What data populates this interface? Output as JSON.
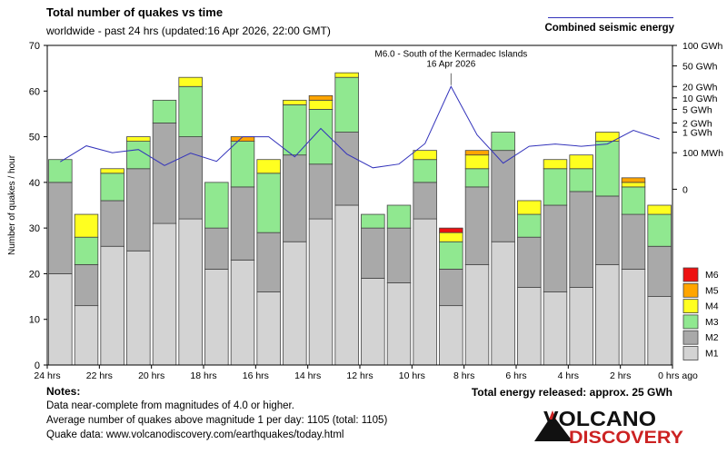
{
  "header": {
    "title": "Total number of quakes vs time",
    "subtitle": "worldwide - past 24 hrs (updated:16 Apr 2026, 22:00 GMT)",
    "energy_legend": "Combined seismic energy"
  },
  "chart_data": {
    "type": "bar",
    "stacked": true,
    "ylabel": "Number of quakes / hour",
    "ylim": [
      0,
      70
    ],
    "yticks": [
      0,
      10,
      20,
      30,
      40,
      50,
      60,
      70
    ],
    "xtick_labels": [
      "24 hrs",
      "22 hrs",
      "20 hrs",
      "18 hrs",
      "16 hrs",
      "14 hrs",
      "12 hrs",
      "10 hrs",
      "8 hrs",
      "6 hrs",
      "4 hrs",
      "2 hrs",
      "0 hrs ago"
    ],
    "magnitude_classes": [
      "M1",
      "M2",
      "M3",
      "M4",
      "M5",
      "M6"
    ],
    "class_colors": [
      "#d3d3d3",
      "#a9a9a9",
      "#90e890",
      "#ffff20",
      "#ffa500",
      "#ee1111"
    ],
    "hours_ago_start": [
      24,
      23,
      22,
      21,
      20,
      19,
      18,
      17,
      16,
      15,
      14,
      13,
      12,
      11,
      10,
      9,
      8,
      7,
      6,
      5,
      4,
      3,
      2,
      1
    ],
    "series": [
      {
        "name": "M1",
        "values": [
          20,
          13,
          26,
          25,
          31,
          32,
          21,
          23,
          16,
          27,
          32,
          35,
          19,
          18,
          32,
          13,
          22,
          27,
          17,
          16,
          17,
          22,
          21,
          15
        ]
      },
      {
        "name": "M2",
        "values": [
          20,
          9,
          10,
          18,
          22,
          18,
          9,
          16,
          13,
          19,
          12,
          16,
          11,
          12,
          8,
          8,
          17,
          20,
          11,
          19,
          21,
          15,
          12,
          11
        ]
      },
      {
        "name": "M3",
        "values": [
          5,
          6,
          6,
          6,
          5,
          11,
          10,
          10,
          13,
          11,
          12,
          12,
          3,
          5,
          5,
          6,
          4,
          4,
          5,
          8,
          5,
          12,
          6,
          7
        ]
      },
      {
        "name": "M4",
        "values": [
          0,
          5,
          1,
          1,
          0,
          2,
          0,
          0,
          3,
          1,
          2,
          1,
          0,
          0,
          2,
          2,
          3,
          0,
          3,
          2,
          3,
          2,
          1,
          2
        ]
      },
      {
        "name": "M5",
        "values": [
          0,
          0,
          0,
          0,
          0,
          0,
          0,
          1,
          0,
          0,
          1,
          0,
          0,
          0,
          0,
          0,
          1,
          0,
          0,
          0,
          0,
          0,
          1,
          0
        ]
      },
      {
        "name": "M6",
        "values": [
          0,
          0,
          0,
          0,
          0,
          0,
          0,
          0,
          0,
          0,
          0,
          0,
          0,
          0,
          0,
          1,
          0,
          0,
          0,
          0,
          0,
          0,
          0,
          0
        ]
      }
    ],
    "energy_axis": {
      "labels": [
        "100 GWh",
        "50 GWh",
        "20 GWh",
        "10 GWh",
        "5 GWh",
        "2 GWh",
        "1 GWh",
        "100 MWh",
        "0"
      ],
      "log10_MWh": [
        5,
        4.699,
        4.301,
        4,
        3.699,
        3.301,
        3,
        2,
        0
      ],
      "plot_values": [
        70,
        65.5,
        61,
        58.5,
        56,
        53,
        51,
        46.5,
        38.5
      ]
    },
    "energy_line": {
      "name": "Combined seismic energy",
      "values": [
        44.5,
        48,
        46.5,
        47.2,
        43.7,
        46.4,
        44.6,
        50,
        50,
        45.6,
        51.8,
        46.2,
        43.2,
        44,
        48.5,
        61,
        50.4,
        44.2,
        47.9,
        48.4,
        47.9,
        48.4,
        51.4,
        49.5
      ]
    },
    "annotation": {
      "text_line1": "M6.0 - South of the Kermadec Islands",
      "text_line2": "16 Apr 2026",
      "bar_index": 15,
      "y_value": 62.5
    }
  },
  "notes": {
    "title": "Notes:",
    "line1": "Data near-complete from magnitudes of 4.0 or higher.",
    "line2": "Average number of quakes above magnitude 1 per day: 1105 (total: 1105)",
    "line3": "Quake data: www.volcanodiscovery.com/earthquakes/today.html",
    "energy_total": "Total energy released: approx. 25 GWh"
  },
  "logo": {
    "line1": "VOLCANO",
    "line2": "DISCOVERY",
    "accent_color": "#cc2222"
  }
}
